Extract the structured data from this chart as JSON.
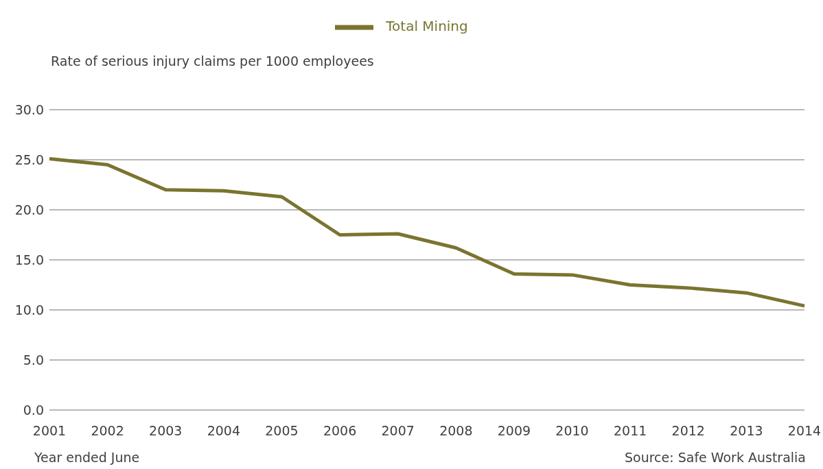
{
  "chart_data": {
    "type": "line",
    "ylabel": "Rate of serious injury claims per 1000 employees",
    "xlabel": "Year ended June",
    "annotations": [
      "Source: Safe Work Australia"
    ],
    "categories": [
      "2001",
      "2002",
      "2003",
      "2004",
      "2005",
      "2006",
      "2007",
      "2008",
      "2009",
      "2010",
      "2011",
      "2012",
      "2013",
      "2014"
    ],
    "series": [
      {
        "name": "Total Mining",
        "color": "#7a7430",
        "values": [
          25.1,
          24.5,
          22.0,
          21.9,
          21.3,
          17.5,
          17.6,
          16.2,
          13.6,
          13.5,
          12.5,
          12.2,
          11.7,
          10.4
        ]
      }
    ],
    "ylim": [
      0,
      30
    ],
    "yticks": [
      {
        "value": 0,
        "label": "0.0"
      },
      {
        "value": 5,
        "label": "5.0"
      },
      {
        "value": 10,
        "label": "10.0"
      },
      {
        "value": 15,
        "label": "15.0"
      },
      {
        "value": 20,
        "label": "20.0"
      },
      {
        "value": 25,
        "label": "25.0"
      },
      {
        "value": 30,
        "label": "30.0"
      }
    ],
    "grid": "y",
    "legend": "top",
    "marker": "none",
    "line_style": "solid"
  }
}
